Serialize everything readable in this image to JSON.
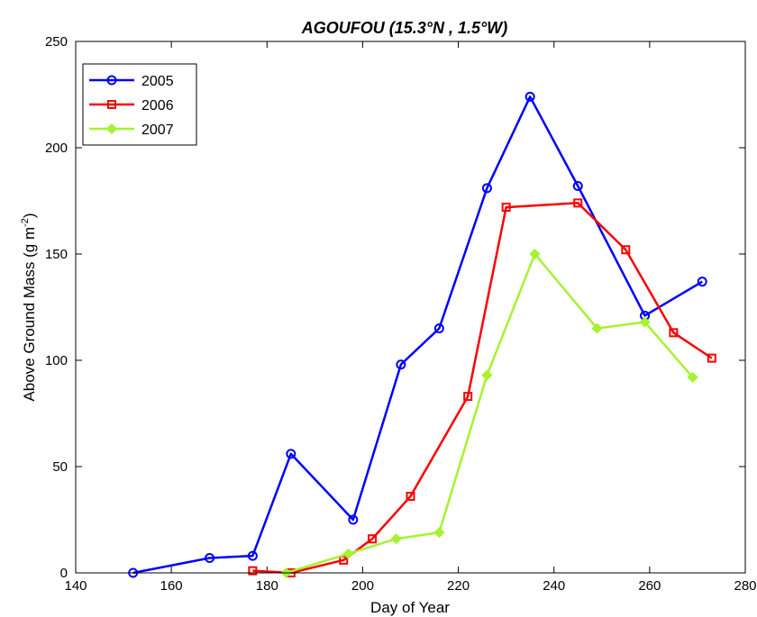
{
  "chart_data": {
    "type": "line",
    "title": "AGOUFOU (15.3°N , 1.5°W)",
    "xlabel": "Day of Year",
    "ylabel_main": "Above Ground Mass (g m",
    "ylabel_sup": "-2",
    "ylabel_close": ")",
    "xlim": [
      140,
      280
    ],
    "ylim": [
      0,
      250
    ],
    "xticks": [
      140,
      160,
      180,
      200,
      220,
      240,
      260,
      280
    ],
    "yticks": [
      0,
      50,
      100,
      150,
      200,
      250
    ],
    "grid": false,
    "legend_position": "top-left",
    "series": [
      {
        "name": "2005",
        "color": "#0000ff",
        "marker": "circle",
        "x": [
          152,
          168,
          177,
          185,
          198,
          208,
          216,
          226,
          235,
          245,
          259,
          271
        ],
        "y": [
          0,
          7,
          8,
          56,
          25,
          98,
          115,
          181,
          224,
          182,
          121,
          137
        ]
      },
      {
        "name": "2006",
        "color": "#ff0000",
        "marker": "square",
        "x": [
          177,
          185,
          196,
          202,
          210,
          222,
          230,
          245,
          255,
          265,
          273
        ],
        "y": [
          1,
          0,
          6,
          16,
          36,
          83,
          172,
          174,
          152,
          113,
          101
        ]
      },
      {
        "name": "2007",
        "color": "#a6f230",
        "marker": "diamond",
        "x": [
          184,
          197,
          207,
          216,
          226,
          236,
          249,
          259,
          269
        ],
        "y": [
          0,
          9,
          16,
          19,
          93,
          150,
          115,
          118,
          92
        ]
      }
    ]
  }
}
